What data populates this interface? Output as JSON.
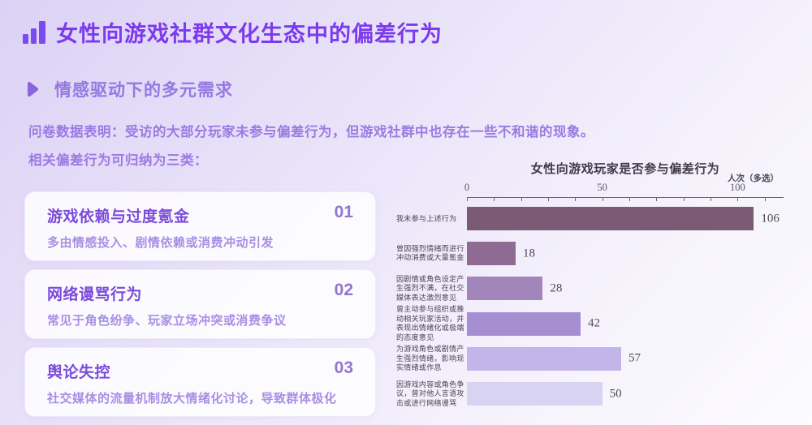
{
  "header": {
    "title": "女性向游戏社群文化生态中的偏差行为"
  },
  "section": {
    "title": "情感驱动下的多元需求"
  },
  "intro": {
    "line1": "问卷数据表明：受访的大部分玩家未参与偏差行为，但游戏社群中也存在一些不和谐的现象。",
    "line2": "相关偏差行为可归纳为三类："
  },
  "cards": [
    {
      "num": "01",
      "title": "游戏依赖与过度氪金",
      "desc": "多由情感投入、剧情依赖或消费冲动引发"
    },
    {
      "num": "02",
      "title": "网络谩骂行为",
      "desc": "常见于角色纷争、玩家立场冲突或消费争议"
    },
    {
      "num": "03",
      "title": "舆论失控",
      "desc": "社交媒体的流量机制放大情绪化讨论，导致群体极化"
    }
  ],
  "chart_data": {
    "type": "bar",
    "orientation": "horizontal",
    "title": "女性向游戏玩家是否参与偏差行为",
    "axis_unit_label": "人次（多选）",
    "categories": [
      "我未参与上述行为",
      "曾因强烈情绪而进行冲动消费或大量氪金",
      "因剧情或角色设定产生强烈不满，在社交媒体表达激烈意见",
      "曾主动参与组织或推动相关玩家活动，并表现出情绪化或极端的态度意见",
      "为游戏角色或剧情产生强烈情绪，影响现实情绪或作息",
      "因游戏内容或角色争议，曾对他人言语攻击或进行网络谩骂"
    ],
    "values": [
      106,
      18,
      28,
      42,
      57,
      50
    ],
    "bar_colors": [
      "#7a5a75",
      "#8f6b94",
      "#a185bb",
      "#a58fd2",
      "#c3b4e9",
      "#d9d3f2"
    ],
    "xlim": [
      0,
      117
    ],
    "ticks": {
      "min": 0,
      "max": 110,
      "step": 10,
      "labeled": [
        0,
        50,
        100
      ]
    },
    "grid": false,
    "legend": "none"
  },
  "colors": {
    "accent": "#7c3aee",
    "section_accent": "#9678e2",
    "card_title": "#7b4bdb",
    "chart_text": "#48434e"
  }
}
